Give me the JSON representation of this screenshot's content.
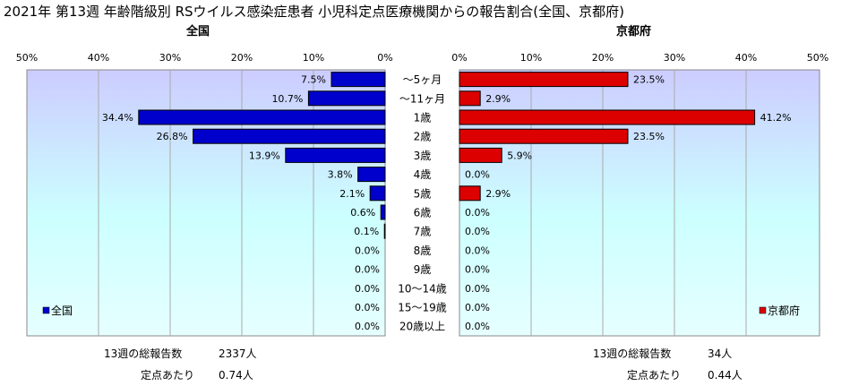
{
  "title": "2021年 第13週 年齢階級別 RSウイルス感染症患者 小児科定点医療機関からの報告割合(全国、京都府)",
  "chart_data": {
    "type": "bar",
    "orientation": "horizontal-butterfly",
    "categories": [
      "～5ヶ月",
      "～11ヶ月",
      "1歳",
      "2歳",
      "3歳",
      "4歳",
      "5歳",
      "6歳",
      "7歳",
      "8歳",
      "9歳",
      "10～14歳",
      "15～19歳",
      "20歳以上"
    ],
    "series": [
      {
        "name": "全国",
        "panel_title": "全国",
        "color": "#0000CC",
        "values": [
          7.5,
          10.7,
          34.4,
          26.8,
          13.9,
          3.8,
          2.1,
          0.6,
          0.1,
          0.0,
          0.0,
          0.0,
          0.0,
          0.0
        ],
        "labels": [
          "7.5%",
          "10.7%",
          "34.4%",
          "26.8%",
          "13.9%",
          "3.8%",
          "2.1%",
          "0.6%",
          "0.1%",
          "0.0%",
          "0.0%",
          "0.0%",
          "0.0%",
          "0.0%"
        ]
      },
      {
        "name": "京都府",
        "panel_title": "京都府",
        "color": "#DD0000",
        "values": [
          23.5,
          2.9,
          41.2,
          23.5,
          5.9,
          0.0,
          2.9,
          0.0,
          0.0,
          0.0,
          0.0,
          0.0,
          0.0,
          0.0
        ],
        "labels": [
          "23.5%",
          "2.9%",
          "41.2%",
          "23.5%",
          "5.9%",
          "0.0%",
          "2.9%",
          "0.0%",
          "0.0%",
          "0.0%",
          "0.0%",
          "0.0%",
          "0.0%",
          "0.0%"
        ]
      }
    ],
    "xlim": [
      0,
      50
    ],
    "xticks": [
      "50%",
      "40%",
      "30%",
      "20%",
      "10%",
      "0%",
      "0%",
      "10%",
      "20%",
      "30%",
      "40%",
      "50%"
    ],
    "grid": true,
    "legend_placement": "bottom-inside"
  },
  "footer": {
    "left": {
      "total_label": "13週の総報告数",
      "total_value": "2337人",
      "per_label": "定点あたり",
      "per_value": "0.74人"
    },
    "right": {
      "total_label": "13週の総報告数",
      "total_value": "34人",
      "per_label": "定点あたり",
      "per_value": "0.44人"
    }
  }
}
